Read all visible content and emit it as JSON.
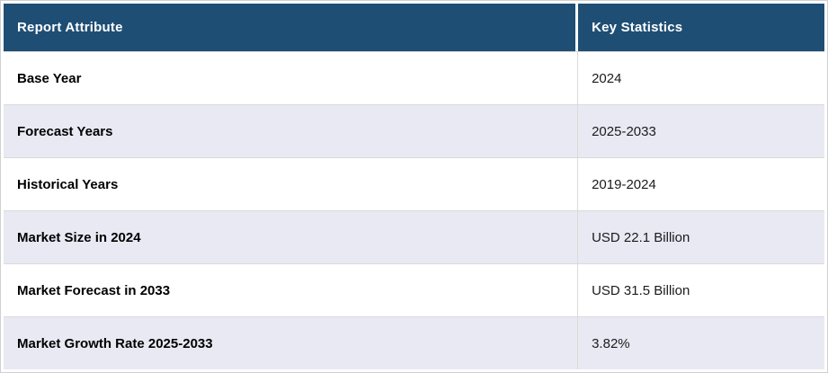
{
  "colors": {
    "header_bg": "#1F4E74",
    "header_text": "#FFFFFF",
    "row_bg": "#FFFFFF",
    "row_alt_bg": "#E8E9F3",
    "divider": "#DADADA",
    "outer_border": "#D0D0D0",
    "label_text": "#000000",
    "value_text": "#1B1B1B"
  },
  "table": {
    "columns": [
      "Report Attribute",
      "Key Statistics"
    ],
    "rows": [
      {
        "attribute": "Base Year",
        "value": "2024"
      },
      {
        "attribute": "Forecast Years",
        "value": "2025-2033"
      },
      {
        "attribute": "Historical Years",
        "value": "2019-2024"
      },
      {
        "attribute": "Market Size in 2024",
        "value": "USD 22.1 Billion"
      },
      {
        "attribute": "Market Forecast in 2033",
        "value": "USD 31.5 Billion"
      },
      {
        "attribute": "Market Growth Rate 2025-2033",
        "value": "3.82%"
      }
    ]
  },
  "chart_data": {
    "type": "table",
    "title": "",
    "columns": [
      "Report Attribute",
      "Key Statistics"
    ],
    "rows": [
      [
        "Base Year",
        "2024"
      ],
      [
        "Forecast Years",
        "2025-2033"
      ],
      [
        "Historical Years",
        "2019-2024"
      ],
      [
        "Market Size in 2024",
        "USD 22.1 Billion"
      ],
      [
        "Market Forecast in 2033",
        "USD 31.5 Billion"
      ],
      [
        "Market Growth Rate 2025-2033",
        "3.82%"
      ]
    ],
    "layout": {
      "header_style": "dark-navy band, white bold text",
      "zebra_striping": true,
      "column_split_ratio": [
        0.7,
        0.3
      ]
    }
  }
}
